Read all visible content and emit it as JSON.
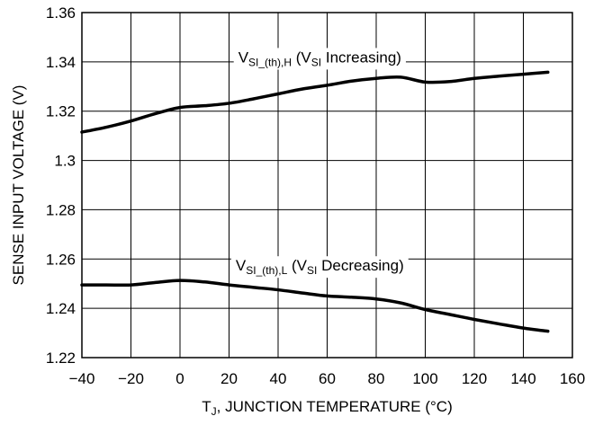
{
  "chart_data": {
    "type": "line",
    "xlabel": {
      "main": "T",
      "sub": "J",
      "rest": ", JUNCTION TEMPERATURE (°C)"
    },
    "ylabel": "SENSE INPUT VOLTAGE (V)",
    "xlim": [
      -40,
      160
    ],
    "ylim": [
      1.22,
      1.36
    ],
    "x_ticks": [
      -40,
      -20,
      0,
      20,
      40,
      60,
      80,
      100,
      120,
      140,
      160
    ],
    "x_tick_labels": [
      "−40",
      "−20",
      "0",
      "20",
      "40",
      "60",
      "80",
      "100",
      "120",
      "140",
      "160"
    ],
    "y_ticks": [
      1.22,
      1.24,
      1.26,
      1.28,
      1.3,
      1.32,
      1.34,
      1.36
    ],
    "y_tick_labels": [
      "1.22",
      "1.24",
      "1.26",
      "1.28",
      "1.3",
      "1.32",
      "1.34",
      "1.36"
    ],
    "grid": true,
    "series": [
      {
        "x": [
          -40,
          -30,
          -20,
          -10,
          0,
          10,
          20,
          30,
          40,
          50,
          60,
          70,
          80,
          90,
          100,
          110,
          120,
          130,
          140,
          150
        ],
        "y": [
          1.3115,
          1.3135,
          1.316,
          1.319,
          1.3215,
          1.3222,
          1.3232,
          1.325,
          1.327,
          1.329,
          1.3305,
          1.3322,
          1.3333,
          1.3338,
          1.3318,
          1.332,
          1.3333,
          1.3342,
          1.335,
          1.3358
        ]
      },
      {
        "x": [
          -40,
          -30,
          -20,
          -10,
          0,
          10,
          20,
          30,
          40,
          50,
          60,
          70,
          80,
          90,
          100,
          110,
          120,
          130,
          140,
          150
        ],
        "y": [
          1.2495,
          1.2495,
          1.2495,
          1.2505,
          1.2513,
          1.2507,
          1.2495,
          1.2485,
          1.2475,
          1.2462,
          1.245,
          1.2445,
          1.2438,
          1.2422,
          1.2395,
          1.2375,
          1.2355,
          1.2337,
          1.232,
          1.2307
        ]
      }
    ],
    "annotations": [
      {
        "x": 57,
        "y": 1.3398,
        "parts": [
          {
            "t": "V",
            "s": false
          },
          {
            "t": "SI_(th),H",
            "s": true
          },
          {
            "t": " (V",
            "s": false
          },
          {
            "t": "SI",
            "s": true
          },
          {
            "t": " Increasing)",
            "s": false
          }
        ]
      },
      {
        "x": 57,
        "y": 1.2553,
        "parts": [
          {
            "t": "V",
            "s": false
          },
          {
            "t": "SI_(th),L",
            "s": true
          },
          {
            "t": " (V",
            "s": false
          },
          {
            "t": "SI",
            "s": true
          },
          {
            "t": " Decreasing)",
            "s": false
          }
        ]
      }
    ]
  }
}
